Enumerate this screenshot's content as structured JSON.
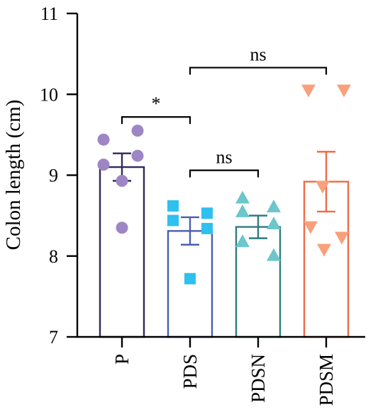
{
  "chart_data": {
    "type": "bar",
    "ylabel": "Colon length (cm)",
    "ylim": [
      7,
      11
    ],
    "yticks": [
      7,
      8,
      9,
      10,
      11
    ],
    "grid": false,
    "categories": [
      "P",
      "PDS",
      "PDSN",
      "PDSM"
    ],
    "series": [
      {
        "values": [
          9.1,
          8.31,
          8.36,
          8.92
        ],
        "sem": [
          0.17,
          0.17,
          0.14,
          0.37
        ],
        "colors": [
          "#2e2a5a",
          "#4a5fb0",
          "#2e7c7f",
          "#ef6a45"
        ],
        "point_colors": [
          "#9e86c4",
          "#2ec0ee",
          "#6cc6cb",
          "#f8a07c"
        ],
        "point_shapes": [
          "circle",
          "square",
          "triangle-up",
          "triangle-down"
        ],
        "points": [
          [
            9.55,
            9.44,
            9.24,
            9.13,
            8.93,
            8.35
          ],
          [
            8.62,
            8.53,
            8.44,
            8.34,
            7.72
          ],
          [
            8.72,
            8.61,
            8.55,
            8.4,
            8.18,
            8.01
          ],
          [
            10.05,
            10.05,
            8.86,
            8.36,
            8.23,
            8.08
          ]
        ]
      }
    ],
    "annotations": [
      {
        "from": "P",
        "to": "PDS",
        "text": "*",
        "y": 9.72
      },
      {
        "from": "PDS",
        "to": "PDSN",
        "text": "ns",
        "y": 9.06
      },
      {
        "from": "PDS",
        "to": "PDSM",
        "text": "ns",
        "y": 10.33
      }
    ]
  }
}
